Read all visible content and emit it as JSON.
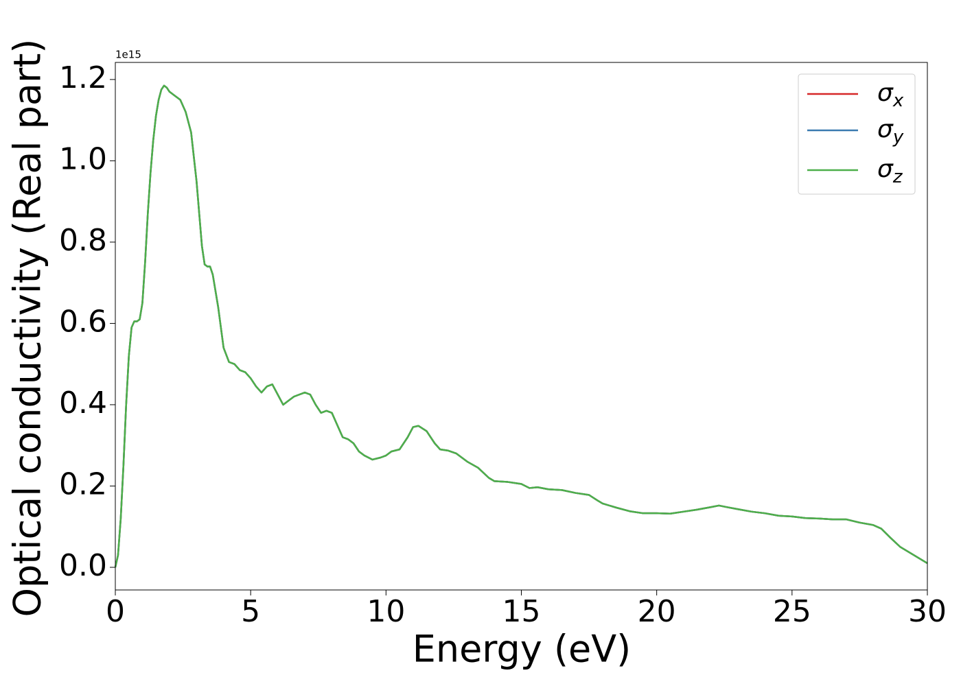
{
  "chart_data": {
    "type": "line",
    "xlabel": "Energy (eV)",
    "ylabel": "Optical conductivity (Real part)",
    "y_offset_label": "1e15",
    "xlim": [
      0,
      30
    ],
    "xticks": [
      0,
      5,
      10,
      15,
      20,
      25,
      30
    ],
    "ylim": [
      -0.0557,
      1.242
    ],
    "yticks": [
      {
        "value": 0,
        "label": "0.0"
      },
      {
        "value": 0.2,
        "label": "0.2"
      },
      {
        "value": 0.4,
        "label": "0.4"
      },
      {
        "value": 0.6,
        "label": "0.6"
      },
      {
        "value": 0.8,
        "label": "0.8"
      },
      {
        "value": 1.0,
        "label": "1.0"
      },
      {
        "value": 1.2,
        "label": "1.2"
      }
    ],
    "legend": "upper right",
    "x": [
      0,
      0.1,
      0.2,
      0.3,
      0.4,
      0.5,
      0.6,
      0.7,
      0.8,
      0.9,
      1.0,
      1.1,
      1.2,
      1.3,
      1.4,
      1.5,
      1.6,
      1.7,
      1.8,
      1.9,
      2.0,
      2.2,
      2.4,
      2.6,
      2.8,
      3.0,
      3.1,
      3.2,
      3.3,
      3.4,
      3.5,
      3.6,
      3.8,
      4.0,
      4.2,
      4.4,
      4.6,
      4.8,
      5.0,
      5.2,
      5.4,
      5.6,
      5.8,
      6.0,
      6.2,
      6.4,
      6.6,
      6.8,
      7.0,
      7.2,
      7.4,
      7.6,
      7.8,
      8.0,
      8.2,
      8.4,
      8.6,
      8.8,
      9.0,
      9.2,
      9.5,
      9.8,
      10.0,
      10.2,
      10.5,
      10.8,
      11.0,
      11.2,
      11.5,
      11.8,
      12.0,
      12.3,
      12.6,
      13.0,
      13.4,
      13.8,
      14.0,
      14.5,
      15.0,
      15.3,
      15.6,
      16.0,
      16.5,
      17.0,
      17.5,
      17.8,
      18.0,
      18.5,
      19.0,
      19.5,
      20.0,
      20.5,
      21.0,
      21.5,
      22.0,
      22.3,
      22.6,
      23.0,
      23.5,
      24.0,
      24.5,
      25.0,
      25.5,
      26.0,
      26.5,
      27.0,
      27.5,
      28.0,
      28.3,
      28.6,
      29.0,
      29.5,
      30.0
    ],
    "series": [
      {
        "name": "σx",
        "color": "#d62728",
        "values": [
          0.0,
          0.03,
          0.12,
          0.25,
          0.4,
          0.52,
          0.59,
          0.605,
          0.605,
          0.61,
          0.65,
          0.75,
          0.87,
          0.97,
          1.05,
          1.11,
          1.15,
          1.175,
          1.185,
          1.18,
          1.17,
          1.16,
          1.15,
          1.12,
          1.07,
          0.95,
          0.87,
          0.79,
          0.745,
          0.74,
          0.74,
          0.72,
          0.64,
          0.54,
          0.505,
          0.5,
          0.485,
          0.48,
          0.465,
          0.445,
          0.43,
          0.445,
          0.45,
          0.425,
          0.4,
          0.41,
          0.42,
          0.425,
          0.43,
          0.425,
          0.4,
          0.38,
          0.385,
          0.38,
          0.35,
          0.32,
          0.315,
          0.305,
          0.285,
          0.275,
          0.265,
          0.27,
          0.275,
          0.285,
          0.29,
          0.32,
          0.345,
          0.348,
          0.335,
          0.305,
          0.29,
          0.287,
          0.28,
          0.26,
          0.245,
          0.22,
          0.212,
          0.21,
          0.205,
          0.195,
          0.197,
          0.192,
          0.19,
          0.183,
          0.178,
          0.165,
          0.157,
          0.147,
          0.138,
          0.133,
          0.133,
          0.132,
          0.137,
          0.142,
          0.148,
          0.152,
          0.148,
          0.143,
          0.137,
          0.133,
          0.127,
          0.125,
          0.121,
          0.12,
          0.118,
          0.118,
          0.11,
          0.104,
          0.095,
          0.075,
          0.05,
          0.03,
          0.01
        ]
      },
      {
        "name": "σy",
        "color": "#3a7ab0",
        "values": [
          0.0,
          0.03,
          0.12,
          0.25,
          0.4,
          0.52,
          0.59,
          0.605,
          0.605,
          0.61,
          0.65,
          0.75,
          0.87,
          0.97,
          1.05,
          1.11,
          1.15,
          1.175,
          1.185,
          1.18,
          1.17,
          1.16,
          1.15,
          1.12,
          1.07,
          0.95,
          0.87,
          0.79,
          0.745,
          0.74,
          0.74,
          0.72,
          0.64,
          0.54,
          0.505,
          0.5,
          0.485,
          0.48,
          0.465,
          0.445,
          0.43,
          0.445,
          0.45,
          0.425,
          0.4,
          0.41,
          0.42,
          0.425,
          0.43,
          0.425,
          0.4,
          0.38,
          0.385,
          0.38,
          0.35,
          0.32,
          0.315,
          0.305,
          0.285,
          0.275,
          0.265,
          0.27,
          0.275,
          0.285,
          0.29,
          0.32,
          0.345,
          0.348,
          0.335,
          0.305,
          0.29,
          0.287,
          0.28,
          0.26,
          0.245,
          0.22,
          0.212,
          0.21,
          0.205,
          0.195,
          0.197,
          0.192,
          0.19,
          0.183,
          0.178,
          0.165,
          0.157,
          0.147,
          0.138,
          0.133,
          0.133,
          0.132,
          0.137,
          0.142,
          0.148,
          0.152,
          0.148,
          0.143,
          0.137,
          0.133,
          0.127,
          0.125,
          0.121,
          0.12,
          0.118,
          0.118,
          0.11,
          0.104,
          0.095,
          0.075,
          0.05,
          0.03,
          0.01
        ]
      },
      {
        "name": "σz",
        "color": "#4daf4a",
        "values": [
          0.0,
          0.03,
          0.12,
          0.25,
          0.4,
          0.52,
          0.59,
          0.605,
          0.605,
          0.61,
          0.65,
          0.75,
          0.87,
          0.97,
          1.05,
          1.11,
          1.15,
          1.175,
          1.185,
          1.18,
          1.17,
          1.16,
          1.15,
          1.12,
          1.07,
          0.95,
          0.87,
          0.79,
          0.745,
          0.74,
          0.74,
          0.72,
          0.64,
          0.54,
          0.505,
          0.5,
          0.485,
          0.48,
          0.465,
          0.445,
          0.43,
          0.445,
          0.45,
          0.425,
          0.4,
          0.41,
          0.42,
          0.425,
          0.43,
          0.425,
          0.4,
          0.38,
          0.385,
          0.38,
          0.35,
          0.32,
          0.315,
          0.305,
          0.285,
          0.275,
          0.265,
          0.27,
          0.275,
          0.285,
          0.29,
          0.32,
          0.345,
          0.348,
          0.335,
          0.305,
          0.29,
          0.287,
          0.28,
          0.26,
          0.245,
          0.22,
          0.212,
          0.21,
          0.205,
          0.195,
          0.197,
          0.192,
          0.19,
          0.183,
          0.178,
          0.165,
          0.157,
          0.147,
          0.138,
          0.133,
          0.133,
          0.132,
          0.137,
          0.142,
          0.148,
          0.152,
          0.148,
          0.143,
          0.137,
          0.133,
          0.127,
          0.125,
          0.121,
          0.12,
          0.118,
          0.118,
          0.11,
          0.104,
          0.095,
          0.075,
          0.05,
          0.03,
          0.01
        ]
      }
    ]
  }
}
